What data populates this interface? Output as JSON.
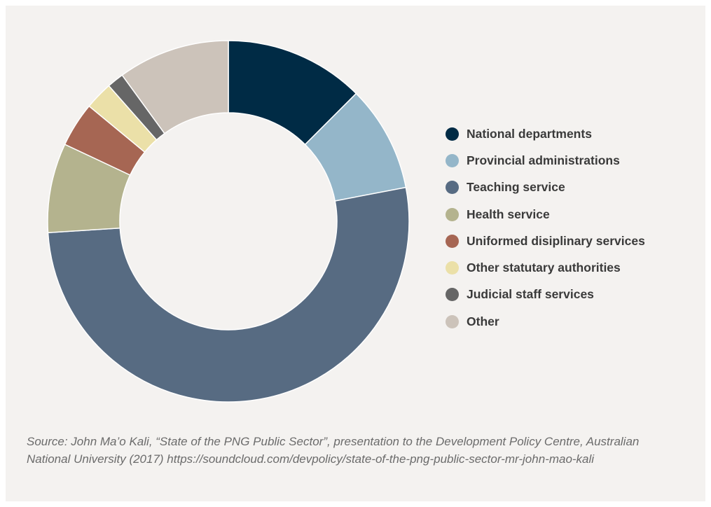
{
  "chart_data": {
    "type": "pie",
    "donut": true,
    "legend_position": "right",
    "categories": [
      "National departments",
      "Provincial administrations",
      "Teaching service",
      "Health service",
      "Uniformed disiplinary services",
      "Other statutary authorities",
      "Judicial staff services",
      "Other"
    ],
    "values": [
      12.5,
      9.5,
      52.0,
      8.0,
      4.0,
      2.5,
      1.5,
      10.0
    ],
    "colors": [
      "#002b45",
      "#94b6c9",
      "#576b82",
      "#b4b38e",
      "#a66653",
      "#ebe0a8",
      "#666666",
      "#ccc3ba"
    ]
  },
  "source_text": "Source: John Ma’o Kali, “State of the PNG Public Sector”, presentation to the Development Policy Centre, Australian National University (2017) https://soundcloud.com/devpolicy/state-of-the-png-public-sector-mr-john-mao-kali"
}
